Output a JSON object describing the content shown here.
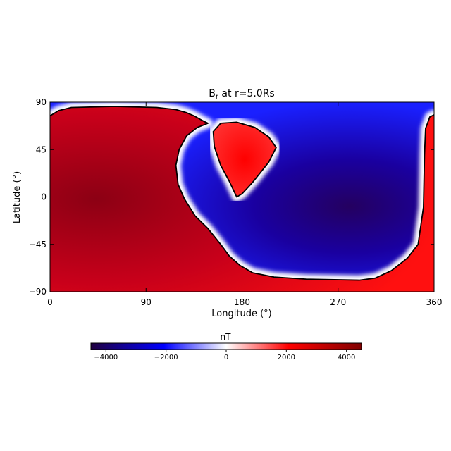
{
  "chart_data": {
    "type": "heatmap",
    "title_main": "B",
    "title_sub": "r",
    "title_rest": " at r=5.0Rs",
    "xlabel": "Longitude (°)",
    "ylabel": "Latitude (°)",
    "xlim": [
      0,
      360
    ],
    "ylim": [
      -90,
      90
    ],
    "xticks": [
      0,
      90,
      180,
      270,
      360
    ],
    "yticks": [
      -90,
      -45,
      0,
      45,
      90
    ],
    "colorbar": {
      "label": "nT",
      "range": [
        -4500,
        4500
      ],
      "ticks": [
        -4000,
        -2000,
        0,
        2000,
        4000
      ],
      "tick_labels": [
        "−4000",
        "−2000",
        "0",
        "2000",
        "4000"
      ],
      "colormap": [
        "#200040",
        "#0000ff",
        "#ffffff",
        "#ff0000",
        "#800000"
      ]
    },
    "regions": [
      {
        "sign": "positive",
        "description_value": 4000,
        "boundary": [
          [
            0,
            77
          ],
          [
            8,
            82
          ],
          [
            20,
            85
          ],
          [
            60,
            86
          ],
          [
            100,
            85
          ],
          [
            118,
            83
          ],
          [
            128,
            80
          ],
          [
            135,
            77
          ],
          [
            142,
            73
          ],
          [
            148,
            70
          ],
          [
            138,
            66
          ],
          [
            128,
            58
          ],
          [
            121,
            45
          ],
          [
            118,
            30
          ],
          [
            120,
            12
          ],
          [
            126,
            -2
          ],
          [
            136,
            -18
          ],
          [
            148,
            -30
          ],
          [
            160,
            -45
          ],
          [
            168,
            -56
          ],
          [
            178,
            -65
          ],
          [
            190,
            -72
          ],
          [
            210,
            -76
          ],
          [
            240,
            -78
          ],
          [
            290,
            -79
          ],
          [
            305,
            -77
          ],
          [
            320,
            -70
          ],
          [
            335,
            -58
          ],
          [
            345,
            -45
          ],
          [
            350,
            -10
          ],
          [
            351,
            40
          ],
          [
            352,
            65
          ],
          [
            356,
            76
          ],
          [
            360,
            78
          ],
          [
            360,
            -90
          ],
          [
            0,
            -90
          ]
        ]
      },
      {
        "sign": "positive",
        "description_value": 3000,
        "boundary": [
          [
            175,
            0
          ],
          [
            168,
            15
          ],
          [
            160,
            30
          ],
          [
            154,
            48
          ],
          [
            153,
            62
          ],
          [
            160,
            70
          ],
          [
            175,
            71
          ],
          [
            192,
            66
          ],
          [
            205,
            57
          ],
          [
            212,
            47
          ],
          [
            205,
            33
          ],
          [
            190,
            14
          ],
          [
            180,
            3
          ]
        ]
      }
    ]
  }
}
